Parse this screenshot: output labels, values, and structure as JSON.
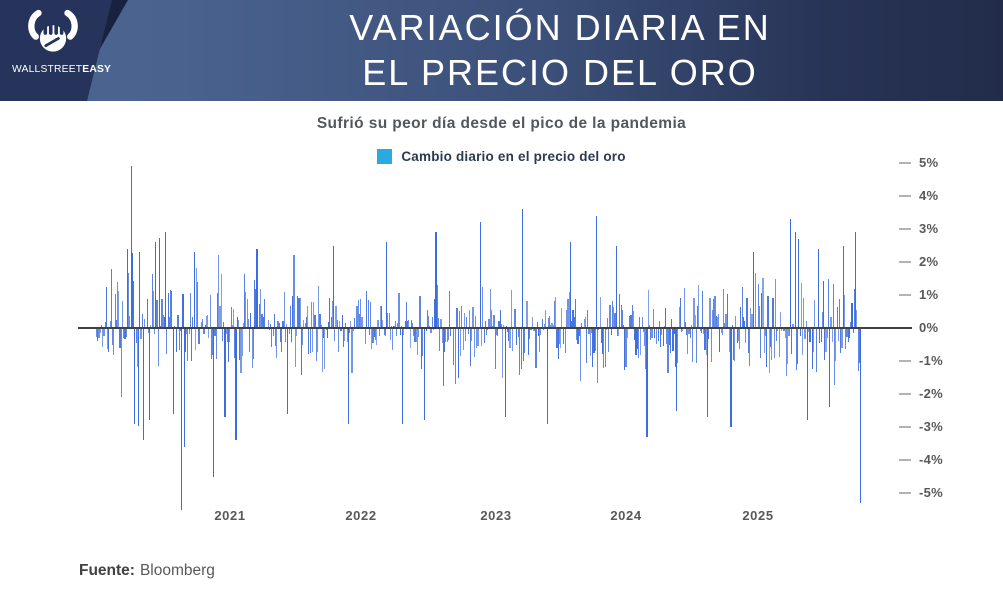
{
  "header": {
    "title_line1": "VARIACIÓN DIARIA EN",
    "title_line2": "EL PRECIO DEL ORO",
    "brand": {
      "wordmark_regular": "WALLSTREET",
      "wordmark_bold": "EASY",
      "icon": "bull-fist-icon"
    }
  },
  "subtitle": "Sufrió su peor día desde el pico de la pandemia",
  "legend": {
    "swatch_color": "#29abe2",
    "label": "Cambio diario en el precio del oro"
  },
  "source": {
    "label": "Fuente:",
    "value": "Bloomberg"
  },
  "colors": {
    "bar_blue": "#3e6be0",
    "header_gradient_left": "#4c6591",
    "header_gradient_right": "#222c4a",
    "logo_panel": "#26335a",
    "logo_shadow": "#18223f",
    "zero_line": "#414042",
    "tick_dash": "#b3b3b3",
    "axis_text": "#58595b"
  },
  "chart_data": {
    "type": "bar",
    "title": "Variación diaria en el precio del oro",
    "subtitle": "Sufrió su peor día desde el pico de la pandemia",
    "legend_entries": [
      "Cambio diario en el precio del oro"
    ],
    "legend_position": "top",
    "grid": false,
    "unit": "%",
    "ylim": [
      -5.6,
      5.2
    ],
    "y_tick_values": [
      5,
      4,
      3,
      2,
      1,
      0,
      -1,
      -2,
      -3,
      -4,
      -5
    ],
    "y_tick_labels": [
      "5%",
      "4%",
      "3%",
      "2%",
      "1%",
      "0%",
      "-1%",
      "-2%",
      "-3%",
      "-4%",
      "-5%"
    ],
    "x_tick_labels": [
      "2021",
      "2022",
      "2023",
      "2024",
      "2025"
    ],
    "n_bars": 620,
    "seed": 7,
    "volatility_envelope": [
      [
        0.03,
        0.6
      ],
      [
        0.09,
        1.05
      ],
      [
        0.16,
        0.9
      ],
      [
        0.22,
        0.78
      ],
      [
        0.42,
        0.6
      ],
      [
        0.55,
        0.7
      ],
      [
        0.66,
        0.75
      ],
      [
        0.74,
        0.66
      ],
      [
        0.88,
        0.7
      ],
      [
        1.0,
        0.9
      ]
    ],
    "key_points": [
      [
        0.02,
        1.8
      ],
      [
        0.033,
        -2.1
      ],
      [
        0.04,
        2.4
      ],
      [
        0.0445,
        4.9
      ],
      [
        0.05,
        -2.9
      ],
      [
        0.056,
        2.3
      ],
      [
        0.062,
        -3.4
      ],
      [
        0.07,
        -2.8
      ],
      [
        0.078,
        2.6
      ],
      [
        0.09,
        2.9
      ],
      [
        0.1,
        -2.6
      ],
      [
        0.1113,
        -5.5
      ],
      [
        0.1139,
        -3.6
      ],
      [
        0.128,
        2.3
      ],
      [
        0.1531,
        -4.5
      ],
      [
        0.16,
        2.2
      ],
      [
        0.168,
        -2.7
      ],
      [
        0.1819,
        -3.4
      ],
      [
        0.21,
        2.4
      ],
      [
        0.25,
        -2.6
      ],
      [
        0.258,
        2.2
      ],
      [
        0.31,
        2.5
      ],
      [
        0.33,
        -2.9
      ],
      [
        0.38,
        2.6
      ],
      [
        0.4,
        -2.9
      ],
      [
        0.43,
        -2.8
      ],
      [
        0.445,
        2.9
      ],
      [
        0.5026,
        3.2
      ],
      [
        0.535,
        -2.7
      ],
      [
        0.5576,
        3.6
      ],
      [
        0.59,
        -2.9
      ],
      [
        0.62,
        2.6
      ],
      [
        0.6545,
        3.4
      ],
      [
        0.68,
        2.5
      ],
      [
        0.72,
        -3.3
      ],
      [
        0.76,
        -2.5
      ],
      [
        0.8,
        -2.7
      ],
      [
        0.83,
        -3.0
      ],
      [
        0.86,
        2.3
      ],
      [
        0.9084,
        3.3
      ],
      [
        0.914,
        2.9
      ],
      [
        0.92,
        2.7
      ],
      [
        0.93,
        -2.8
      ],
      [
        0.945,
        2.4
      ],
      [
        0.96,
        -2.4
      ],
      [
        0.978,
        2.5
      ],
      [
        0.994,
        2.9
      ],
      [
        1.0,
        -5.3
      ]
    ]
  }
}
